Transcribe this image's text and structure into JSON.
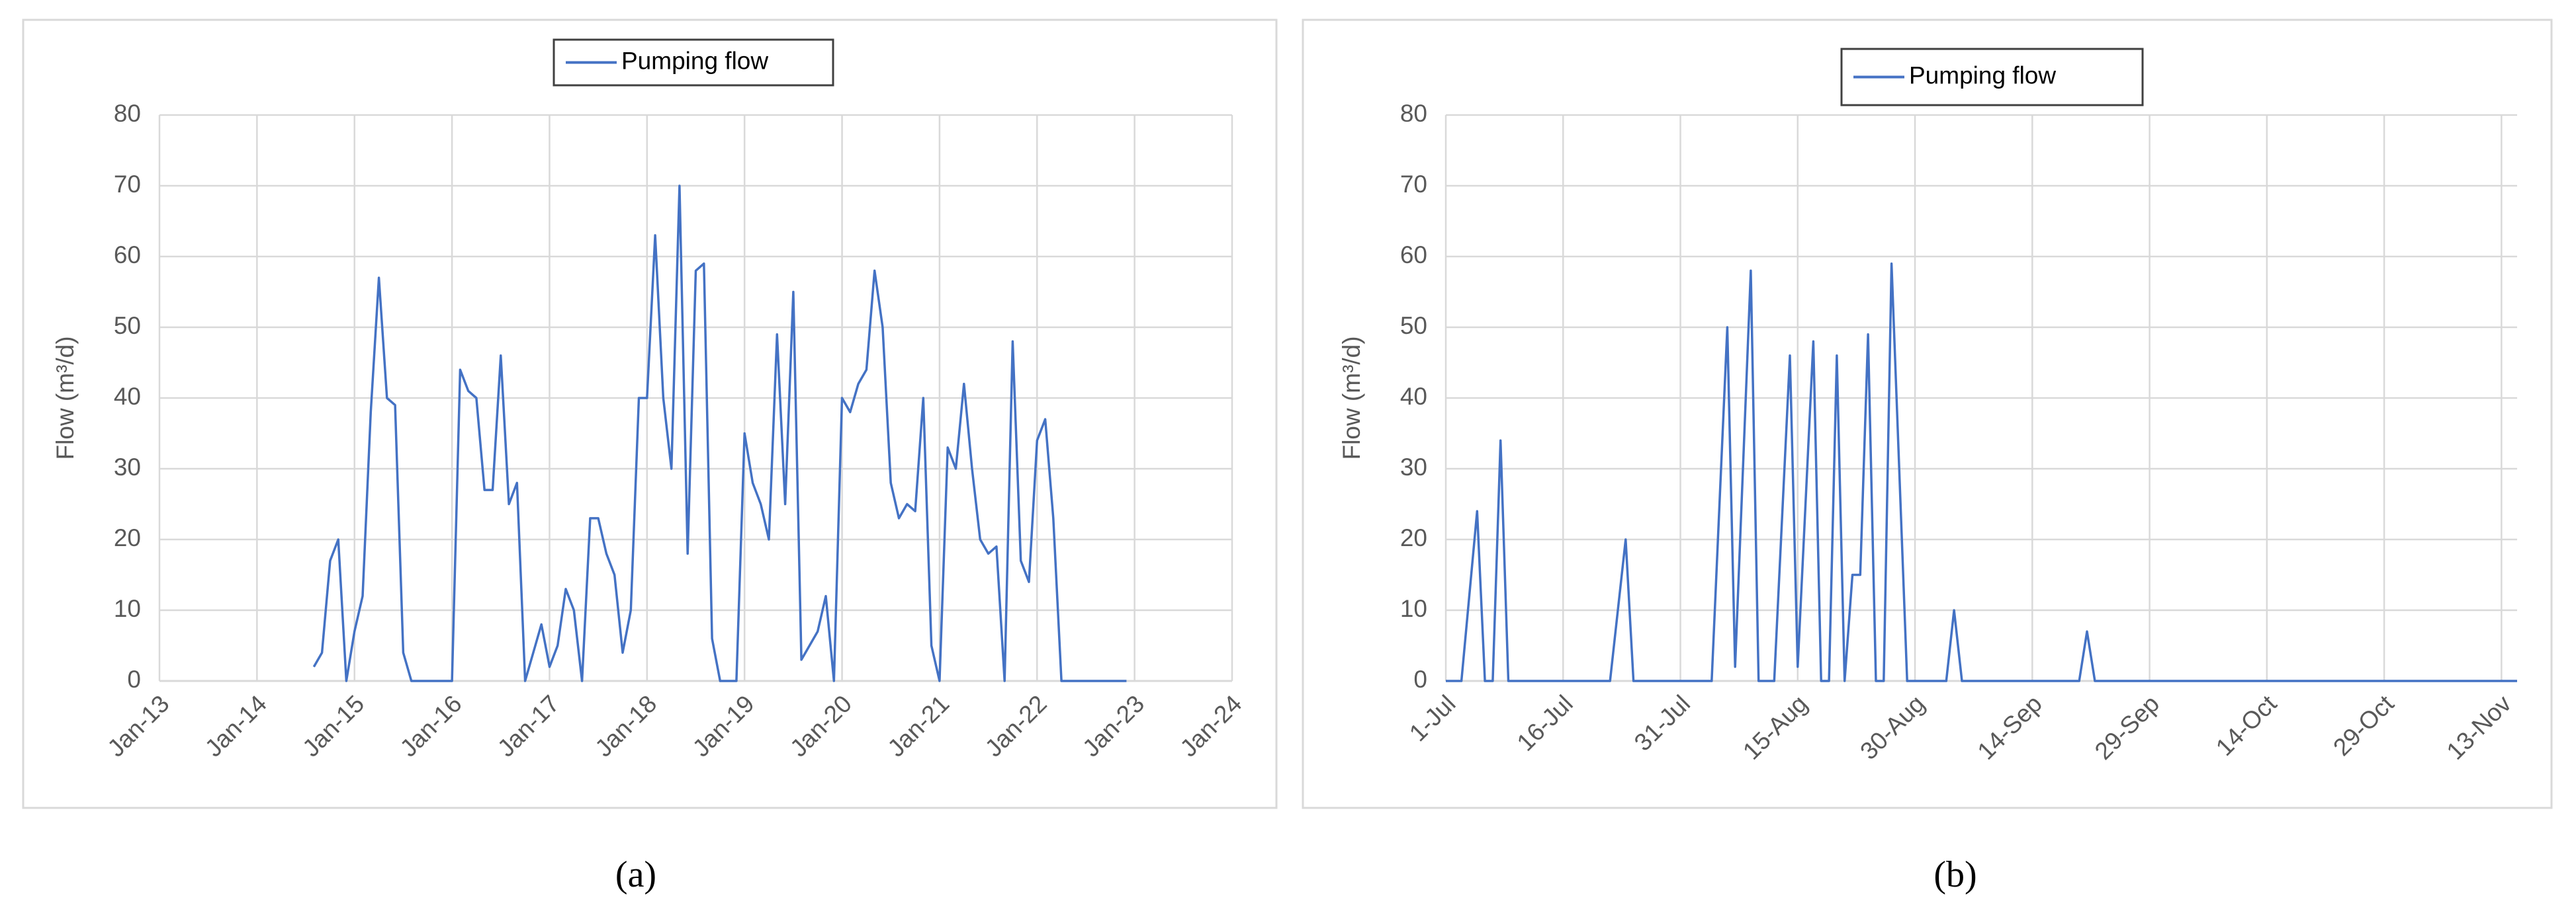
{
  "chart_data": [
    {
      "type": "line",
      "label": "(a)",
      "y_label": "Flow (m³/d)",
      "legend": "top",
      "grid": true,
      "color": "#4472c4",
      "xlim": [
        "2013-01",
        "2024-01"
      ],
      "xticks": [
        {
          "value": "2013-01",
          "label": "Jan-13"
        },
        {
          "value": "2014-01",
          "label": "Jan-14"
        },
        {
          "value": "2015-01",
          "label": "Jan-15"
        },
        {
          "value": "2016-01",
          "label": "Jan-16"
        },
        {
          "value": "2017-01",
          "label": "Jan-17"
        },
        {
          "value": "2018-01",
          "label": "Jan-18"
        },
        {
          "value": "2019-01",
          "label": "Jan-19"
        },
        {
          "value": "2020-01",
          "label": "Jan-20"
        },
        {
          "value": "2021-01",
          "label": "Jan-21"
        },
        {
          "value": "2022-01",
          "label": "Jan-22"
        },
        {
          "value": "2023-01",
          "label": "Jan-23"
        },
        {
          "value": "2024-01",
          "label": "Jan-24"
        }
      ],
      "ylim": [
        0,
        80
      ],
      "yticks": [
        0,
        10,
        20,
        30,
        40,
        50,
        60,
        70,
        80
      ],
      "x": [
        "2014-08",
        "2014-09",
        "2014-10",
        "2014-11",
        "2014-12",
        "2015-01",
        "2015-02",
        "2015-03",
        "2015-04",
        "2015-05",
        "2015-06",
        "2015-07",
        "2015-08",
        "2015-09",
        "2015-10",
        "2015-11",
        "2015-12",
        "2016-01",
        "2016-02",
        "2016-03",
        "2016-04",
        "2016-05",
        "2016-06",
        "2016-07",
        "2016-08",
        "2016-09",
        "2016-10",
        "2016-11",
        "2016-12",
        "2017-01",
        "2017-02",
        "2017-03",
        "2017-04",
        "2017-05",
        "2017-06",
        "2017-07",
        "2017-08",
        "2017-09",
        "2017-10",
        "2017-11",
        "2017-12",
        "2018-01",
        "2018-02",
        "2018-03",
        "2018-04",
        "2018-05",
        "2018-06",
        "2018-07",
        "2018-08",
        "2018-09",
        "2018-10",
        "2018-11",
        "2018-12",
        "2019-01",
        "2019-02",
        "2019-03",
        "2019-04",
        "2019-05",
        "2019-06",
        "2019-07",
        "2019-08",
        "2019-09",
        "2019-10",
        "2019-11",
        "2019-12",
        "2020-01",
        "2020-02",
        "2020-03",
        "2020-04",
        "2020-05",
        "2020-06",
        "2020-07",
        "2020-08",
        "2020-09",
        "2020-10",
        "2020-11",
        "2020-12",
        "2021-01",
        "2021-02",
        "2021-03",
        "2021-04",
        "2021-05",
        "2021-06",
        "2021-07",
        "2021-08",
        "2021-09",
        "2021-10",
        "2021-11",
        "2021-12",
        "2022-01",
        "2022-02",
        "2022-03",
        "2022-04",
        "2022-05",
        "2022-06",
        "2022-07",
        "2022-08",
        "2022-09",
        "2022-10",
        "2022-11",
        "2022-12"
      ],
      "series": [
        {
          "name": "Pumping flow",
          "color": "#4472c4",
          "values": [
            2,
            4,
            17,
            20,
            0,
            7,
            12,
            38,
            57,
            40,
            39,
            4,
            0,
            0,
            0,
            0,
            0,
            0,
            44,
            41,
            40,
            27,
            27,
            46,
            25,
            28,
            0,
            4,
            8,
            2,
            5,
            13,
            10,
            0,
            23,
            23,
            18,
            15,
            4,
            10,
            40,
            40,
            63,
            40,
            30,
            70,
            18,
            58,
            59,
            6,
            0,
            0,
            0,
            35,
            28,
            25,
            20,
            49,
            25,
            55,
            3,
            5,
            7,
            12,
            0,
            40,
            38,
            42,
            44,
            58,
            50,
            28,
            23,
            25,
            24,
            40,
            5,
            0,
            33,
            30,
            42,
            30,
            20,
            18,
            19,
            0,
            48,
            17,
            14,
            34,
            37,
            23,
            0,
            0,
            0,
            0,
            0,
            0,
            0,
            0,
            0
          ]
        }
      ]
    },
    {
      "type": "line",
      "label": "(b)",
      "y_label": "Flow (m³/d)",
      "legend": "top",
      "grid": true,
      "color": "#4472c4",
      "xlim": [
        "07-01",
        "11-15"
      ],
      "xticks": [
        {
          "value": "07-01",
          "label": "1-Jul"
        },
        {
          "value": "07-16",
          "label": "16-Jul"
        },
        {
          "value": "07-31",
          "label": "31-Jul"
        },
        {
          "value": "08-15",
          "label": "15-Aug"
        },
        {
          "value": "08-30",
          "label": "30-Aug"
        },
        {
          "value": "09-14",
          "label": "14-Sep"
        },
        {
          "value": "09-29",
          "label": "29-Sep"
        },
        {
          "value": "10-14",
          "label": "14-Oct"
        },
        {
          "value": "10-29",
          "label": "29-Oct"
        },
        {
          "value": "11-13",
          "label": "13-Nov"
        }
      ],
      "ylim": [
        0,
        80
      ],
      "yticks": [
        0,
        10,
        20,
        30,
        40,
        50,
        60,
        70,
        80
      ],
      "x": [
        "07-01",
        "07-03",
        "07-05",
        "07-06",
        "07-07",
        "07-08",
        "07-09",
        "07-22",
        "07-24",
        "07-25",
        "08-04",
        "08-06",
        "08-07",
        "08-09",
        "08-10",
        "08-12",
        "08-14",
        "08-15",
        "08-17",
        "08-18",
        "08-19",
        "08-20",
        "08-21",
        "08-22",
        "08-23",
        "08-24",
        "08-25",
        "08-26",
        "08-27",
        "08-29",
        "09-03",
        "09-04",
        "09-05",
        "09-20",
        "09-21",
        "09-22",
        "11-15"
      ],
      "series": [
        {
          "name": "Pumping flow",
          "color": "#4472c4",
          "values": [
            0,
            0,
            24,
            0,
            0,
            34,
            0,
            0,
            20,
            0,
            0,
            50,
            2,
            58,
            0,
            0,
            46,
            2,
            48,
            0,
            0,
            46,
            0,
            15,
            15,
            49,
            0,
            0,
            59,
            0,
            0,
            10,
            0,
            0,
            7,
            0,
            0
          ]
        }
      ]
    }
  ]
}
